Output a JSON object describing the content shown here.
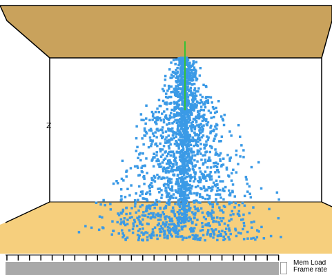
{
  "window": {
    "axis_label": "Z"
  },
  "scene": {
    "ceiling_color": "#c9a25c",
    "floor_color": "#f6cf7d",
    "particle_color": "#3b9ae6",
    "emitter_color": "#35c235",
    "edge_color": "#000000"
  },
  "status": {
    "mem_load_label": "Mem Load",
    "frame_rate_label": "Frame rate"
  },
  "progress": {
    "track_color": "#a9a9a9"
  }
}
